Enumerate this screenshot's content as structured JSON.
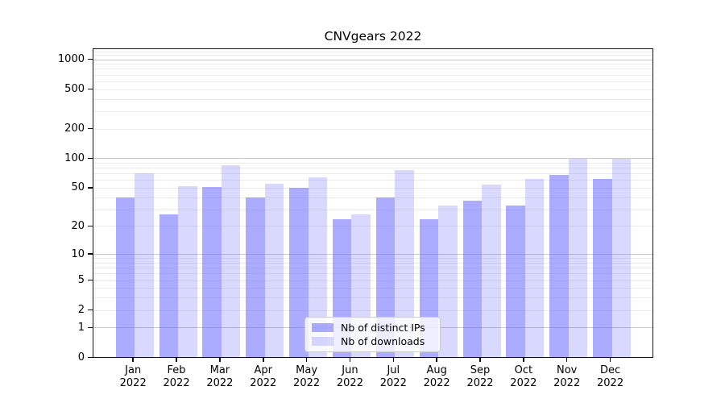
{
  "chart_data": {
    "type": "bar",
    "title": "CNVgears 2022",
    "categories": [
      "Jan",
      "Feb",
      "Mar",
      "Apr",
      "May",
      "Jun",
      "Jul",
      "Aug",
      "Sep",
      "Oct",
      "Nov",
      "Dec"
    ],
    "category_year": "2022",
    "series": [
      {
        "name": "Nb of distinct IPs",
        "color": "rgba(102,102,255,0.55)",
        "values": [
          40,
          27,
          51,
          40,
          50,
          24,
          40,
          24,
          37,
          33,
          68,
          62
        ]
      },
      {
        "name": "Nb of downloads",
        "color": "rgba(102,102,255,0.25)",
        "values": [
          71,
          52,
          85,
          55,
          65,
          27,
          77,
          33,
          54,
          62,
          100,
          100
        ]
      }
    ],
    "y_axis": {
      "scale": "log1p",
      "ticks": [
        1000,
        500,
        200,
        100,
        50,
        20,
        10,
        5,
        2,
        1,
        0
      ]
    },
    "grid": {
      "major_values": [
        1,
        10,
        100,
        1000
      ],
      "minor_values": [
        2,
        3,
        4,
        5,
        6,
        7,
        8,
        9,
        20,
        30,
        40,
        50,
        60,
        70,
        80,
        90,
        200,
        300,
        400,
        500,
        600,
        700,
        800,
        900,
        1100,
        1200
      ],
      "major_color": "#c9c9c9",
      "minor_color": "#ebebeb"
    },
    "legend": {
      "position": "lower center",
      "entries": [
        "Nb of distinct IPs",
        "Nb of downloads"
      ]
    }
  }
}
